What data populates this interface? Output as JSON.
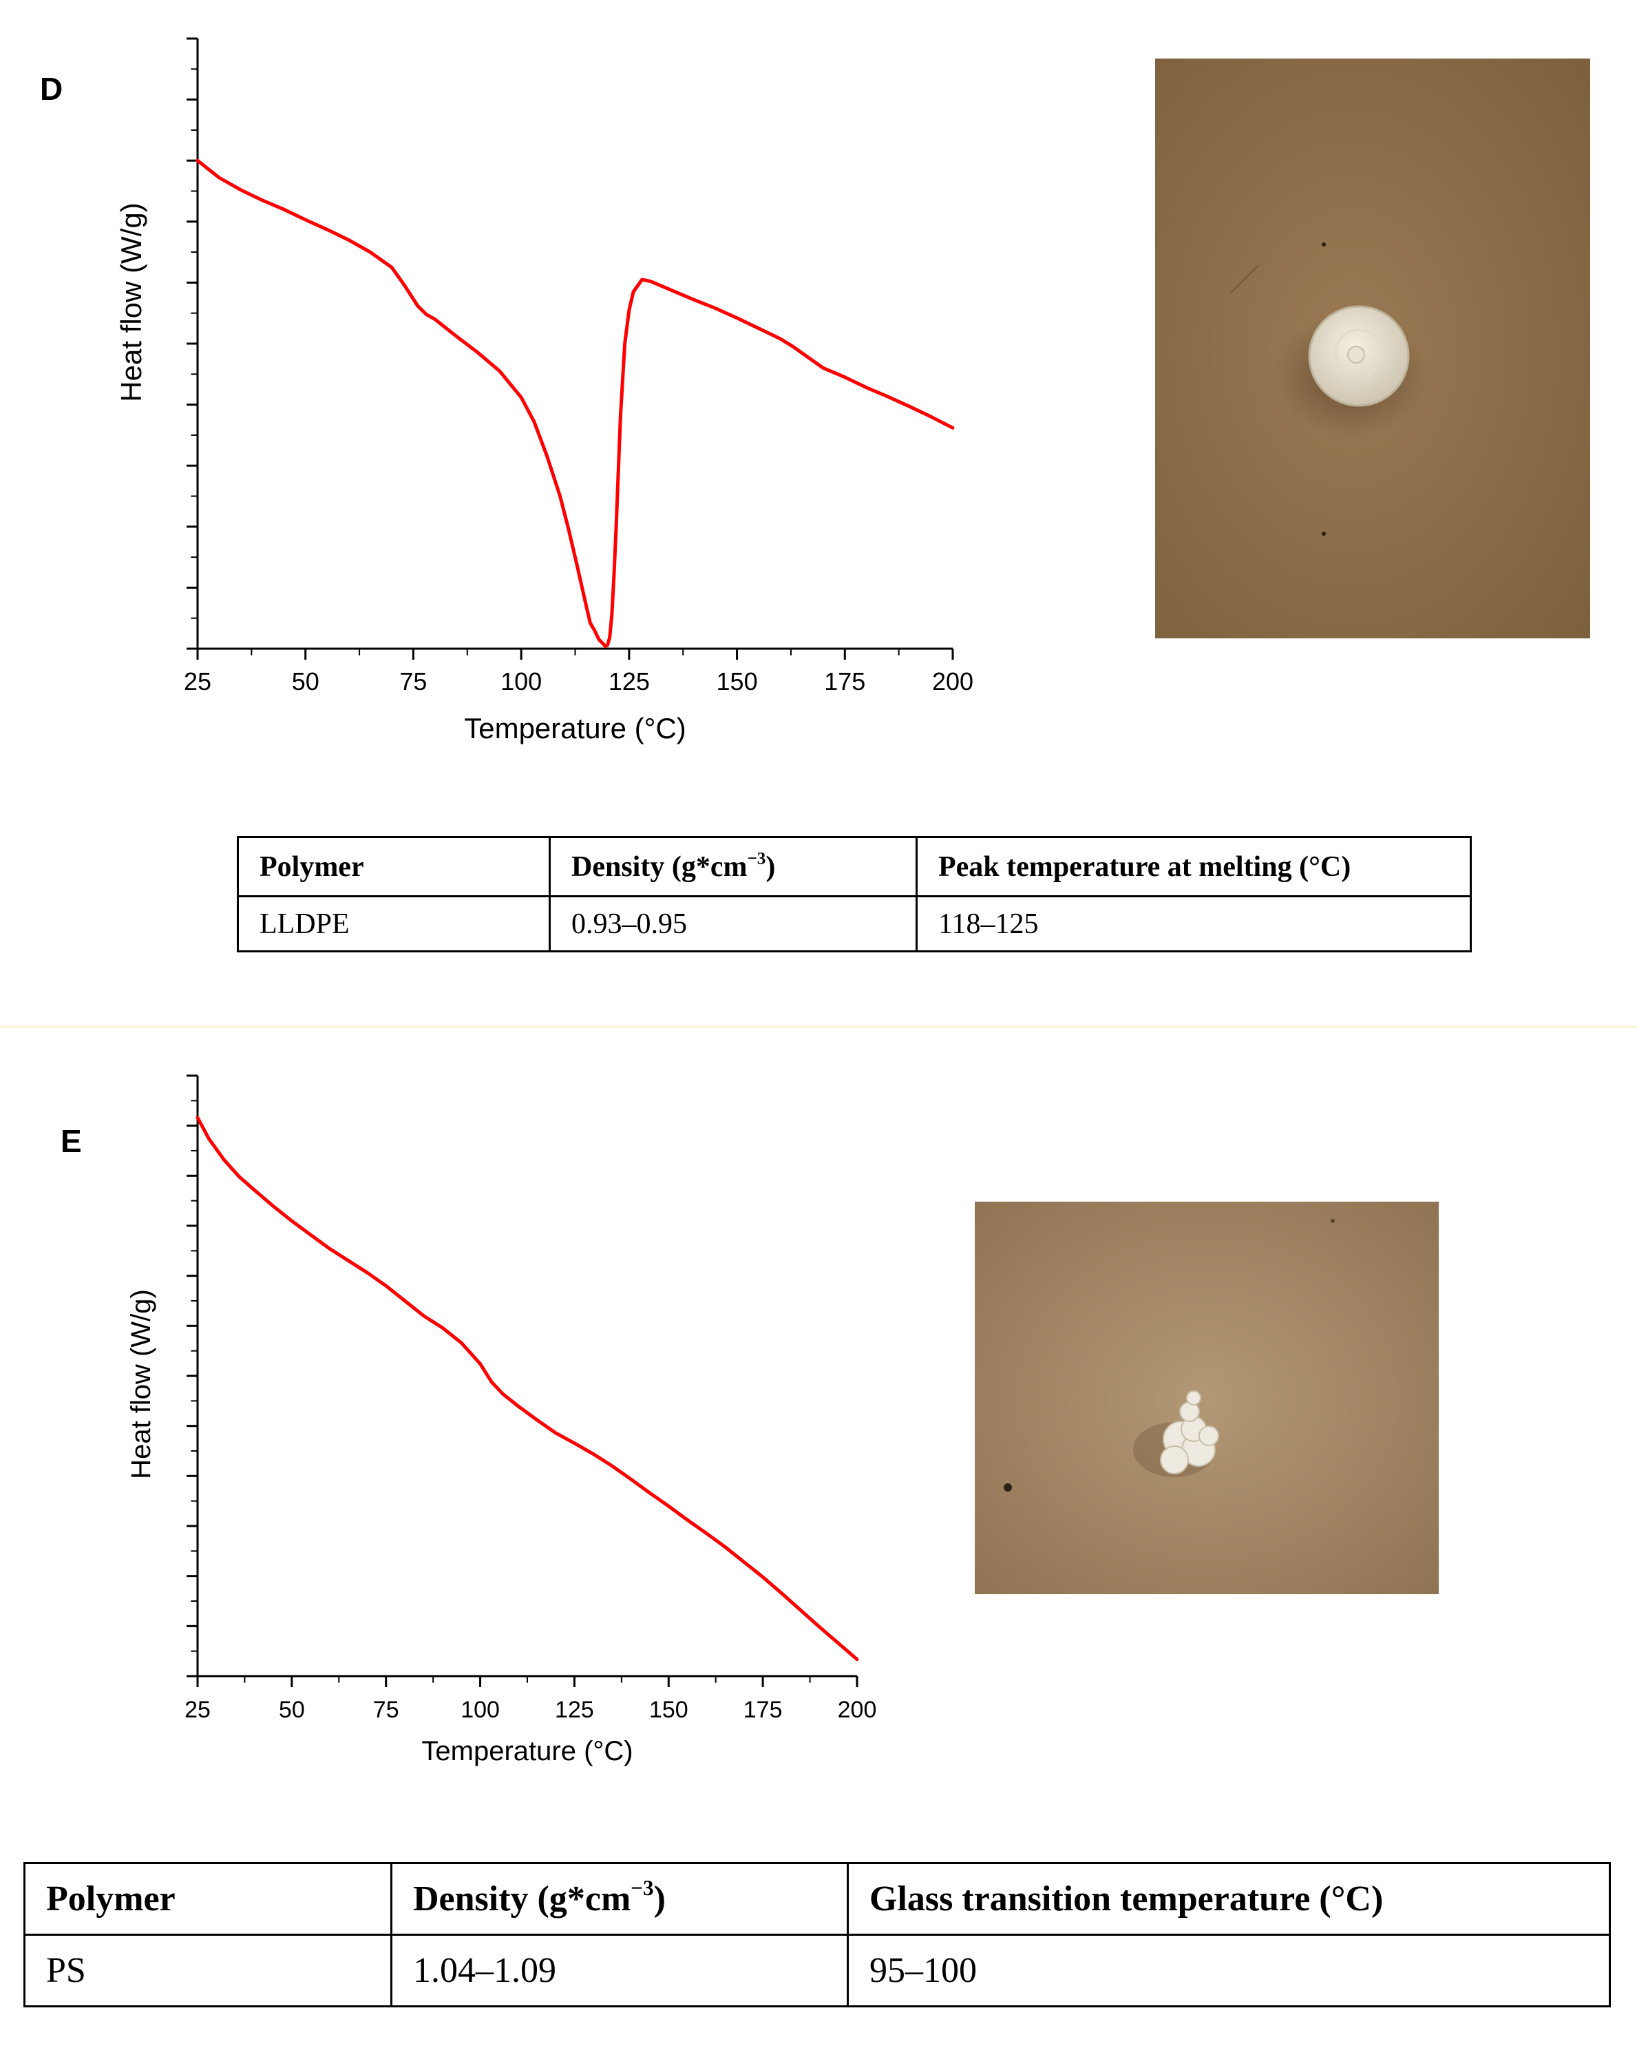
{
  "panels": {
    "D": {
      "label": "D",
      "chart_data": {
        "type": "line",
        "xlabel": "Temperature (°C)",
        "ylabel": "Heat flow (W/g)",
        "xlim": [
          25,
          200
        ],
        "xticks": [
          25,
          50,
          75,
          100,
          125,
          150,
          175,
          200
        ],
        "ylim": [
          0,
          10
        ],
        "y_tick_labels": false,
        "series": [
          {
            "color": "#ff0000",
            "x": [
              25,
              30,
              35,
              40,
              45,
              50,
              55,
              60,
              65,
              70,
              73,
              76,
              78,
              80,
              85,
              90,
              95,
              100,
              103,
              106,
              109,
              111,
              113,
              115,
              116,
              117,
              118,
              119,
              119.5,
              120,
              120.5,
              121,
              121.5,
              122,
              122.5,
              123,
              124,
              125,
              126,
              128,
              130,
              135,
              140,
              145,
              150,
              155,
              160,
              163,
              165,
              170,
              175,
              180,
              185,
              190,
              195,
              200
            ],
            "y": [
              8.0,
              7.72,
              7.52,
              7.35,
              7.2,
              7.03,
              6.87,
              6.7,
              6.5,
              6.25,
              5.95,
              5.62,
              5.48,
              5.4,
              5.12,
              4.85,
              4.55,
              4.12,
              3.72,
              3.15,
              2.5,
              1.95,
              1.35,
              0.72,
              0.42,
              0.3,
              0.15,
              0.08,
              0.04,
              0.06,
              0.18,
              0.55,
              1.2,
              2.0,
              2.9,
              3.8,
              5.0,
              5.55,
              5.85,
              6.05,
              6.02,
              5.87,
              5.72,
              5.58,
              5.42,
              5.25,
              5.08,
              4.95,
              4.85,
              4.6,
              4.45,
              4.28,
              4.13,
              3.97,
              3.8,
              3.62
            ]
          }
        ]
      },
      "table": {
        "headers": [
          "Polymer",
          "Density (g*cm",
          "Peak temperature at melting (°C)"
        ],
        "density_sup": "−3",
        "density_close": ")",
        "row": [
          "LLDPE",
          "0.93–0.95",
          "118–125"
        ]
      }
    },
    "E": {
      "label": "E",
      "chart_data": {
        "type": "line",
        "xlabel": "Temperature (°C)",
        "ylabel": "Heat flow (W/g)",
        "xlim": [
          25,
          200
        ],
        "xticks": [
          25,
          50,
          75,
          100,
          125,
          150,
          175,
          200
        ],
        "ylim": [
          0,
          10
        ],
        "y_tick_labels": false,
        "series": [
          {
            "color": "#ff0000",
            "x": [
              25,
              28,
              32,
              36,
              40,
              45,
              50,
              55,
              60,
              65,
              70,
              75,
              80,
              85,
              90,
              95,
              100,
              103,
              106,
              110,
              115,
              120,
              125,
              130,
              135,
              140,
              145,
              150,
              155,
              160,
              165,
              170,
              175,
              180,
              185,
              190,
              195,
              200
            ],
            "y": [
              9.3,
              8.95,
              8.6,
              8.32,
              8.1,
              7.83,
              7.58,
              7.35,
              7.12,
              6.92,
              6.72,
              6.5,
              6.25,
              6.0,
              5.8,
              5.55,
              5.2,
              4.9,
              4.7,
              4.5,
              4.27,
              4.05,
              3.88,
              3.7,
              3.5,
              3.28,
              3.05,
              2.83,
              2.6,
              2.38,
              2.15,
              1.9,
              1.65,
              1.38,
              1.1,
              0.82,
              0.55,
              0.28
            ]
          }
        ]
      },
      "table": {
        "headers": [
          "Polymer",
          "Density (g*cm",
          "Glass transition temperature (°C)"
        ],
        "density_sup": "−3",
        "density_close": ")",
        "row": [
          "PS",
          "1.04–1.09",
          "95–100"
        ]
      }
    }
  }
}
